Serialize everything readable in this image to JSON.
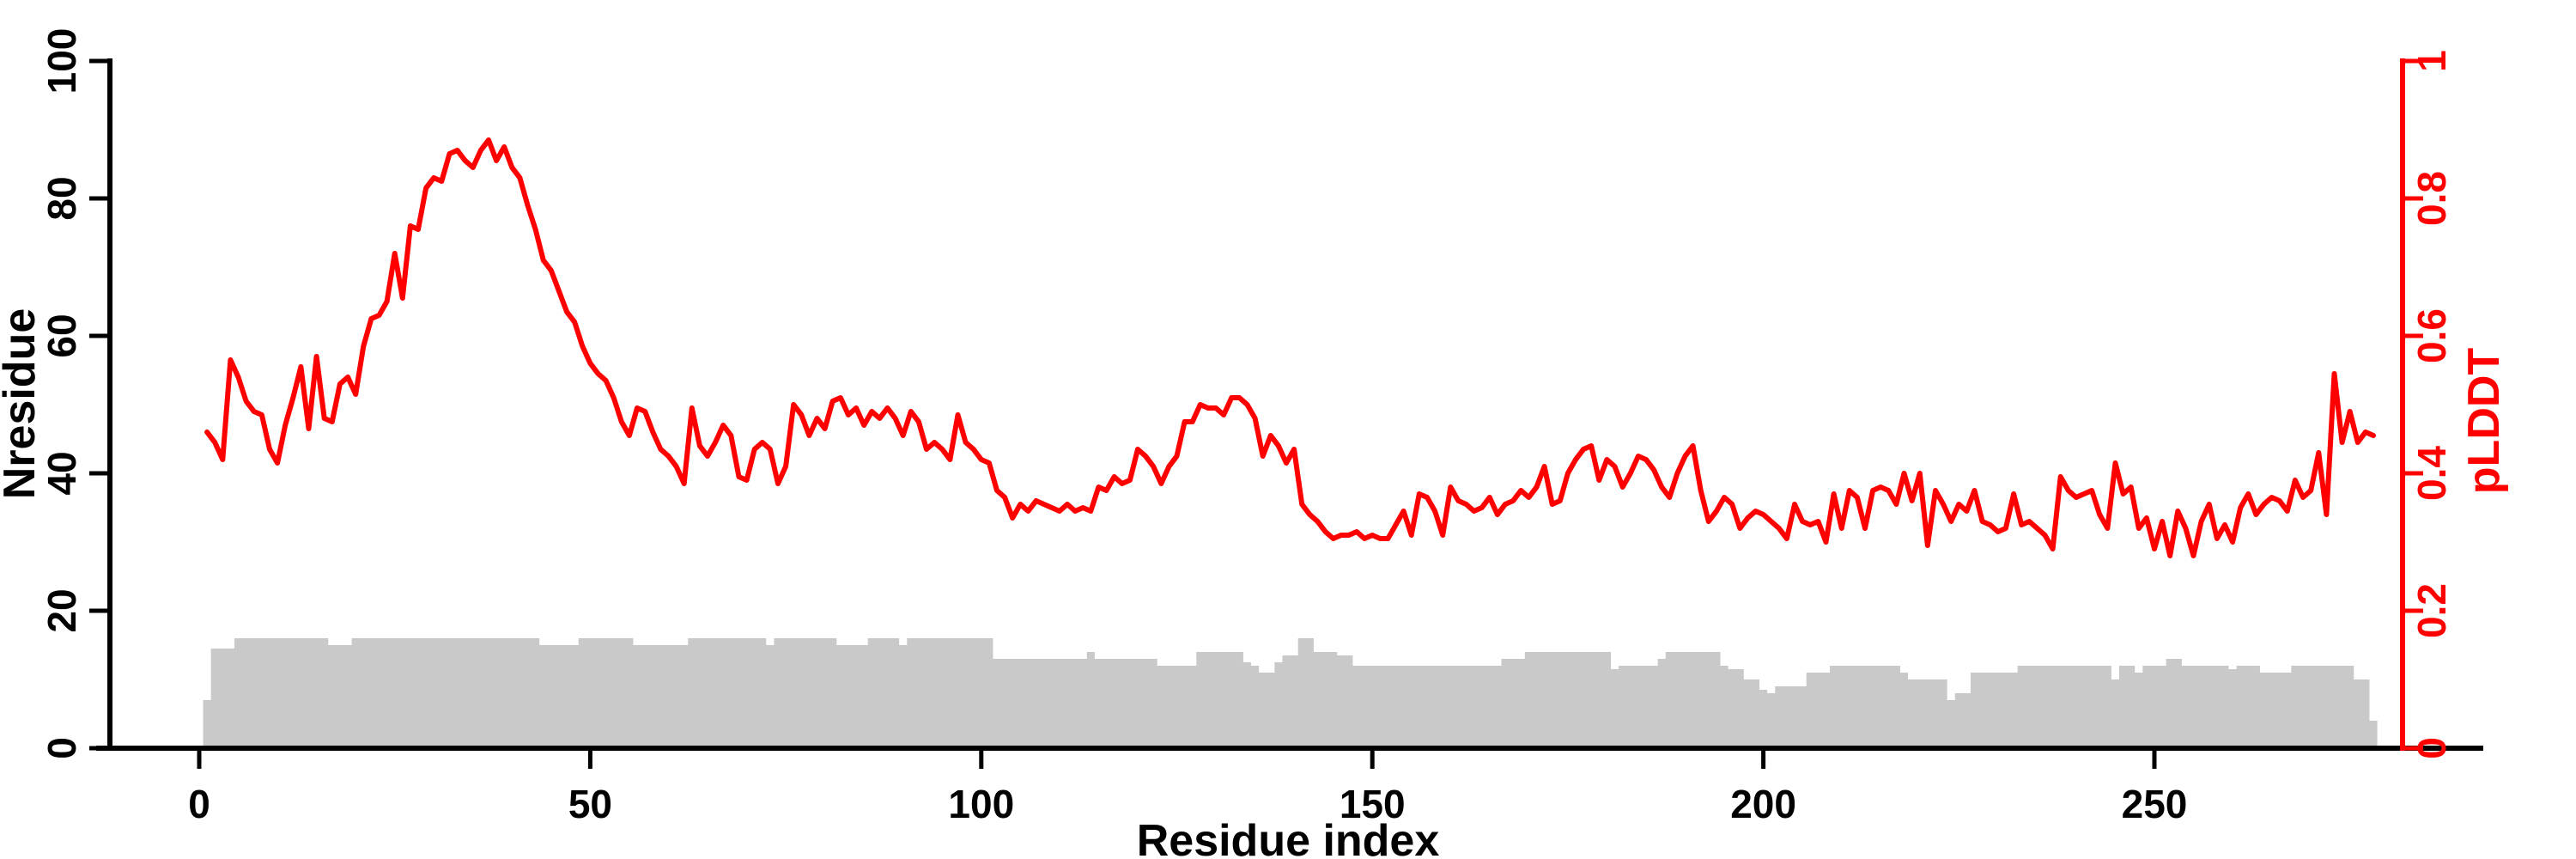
{
  "chart_data": {
    "type": "line",
    "subtype": "dual-axis line over bar silhouette",
    "title": "",
    "xlabel": "Residue index",
    "ylabel_left": "Nresidue",
    "ylabel_right": "pLDDT",
    "x_ticks": [
      0,
      50,
      100,
      150,
      200,
      250
    ],
    "y_left_ticks": [
      0,
      20,
      40,
      60,
      80,
      100
    ],
    "y_right_tick_labels": [
      "0",
      "0.2",
      "0.4",
      "0.6",
      "0.8",
      "1"
    ],
    "xlim": [
      0,
      282
    ],
    "ylim_left": [
      0,
      100
    ],
    "ylim_right": [
      0,
      1
    ],
    "grid": false,
    "legend": "none",
    "colors": {
      "line": "#ff0000",
      "bars": "#c9c9c9",
      "left_axis": "#000000",
      "right_axis": "#ff0000",
      "background": "#ffffff"
    },
    "x_start_residue": 1,
    "series": [
      {
        "name": "pLDDT",
        "type": "line",
        "axis": "right",
        "values": [
          0.46,
          0.445,
          0.42,
          0.565,
          0.54,
          0.505,
          0.49,
          0.485,
          0.435,
          0.415,
          0.47,
          0.51,
          0.555,
          0.465,
          0.57,
          0.48,
          0.475,
          0.53,
          0.54,
          0.515,
          0.585,
          0.625,
          0.63,
          0.65,
          0.72,
          0.655,
          0.76,
          0.755,
          0.815,
          0.83,
          0.825,
          0.865,
          0.87,
          0.855,
          0.845,
          0.87,
          0.885,
          0.855,
          0.875,
          0.845,
          0.83,
          0.79,
          0.755,
          0.71,
          0.695,
          0.665,
          0.635,
          0.62,
          0.585,
          0.56,
          0.545,
          0.535,
          0.51,
          0.475,
          0.455,
          0.495,
          0.49,
          0.46,
          0.435,
          0.425,
          0.41,
          0.385,
          0.495,
          0.44,
          0.425,
          0.445,
          0.47,
          0.455,
          0.395,
          0.39,
          0.435,
          0.445,
          0.435,
          0.385,
          0.41,
          0.5,
          0.485,
          0.455,
          0.48,
          0.465,
          0.505,
          0.51,
          0.485,
          0.495,
          0.47,
          0.49,
          0.48,
          0.495,
          0.48,
          0.455,
          0.49,
          0.475,
          0.435,
          0.445,
          0.435,
          0.42,
          0.485,
          0.445,
          0.435,
          0.42,
          0.415,
          0.375,
          0.365,
          0.335,
          0.355,
          0.345,
          0.36,
          0.355,
          0.35,
          0.345,
          0.355,
          0.345,
          0.35,
          0.345,
          0.38,
          0.375,
          0.395,
          0.385,
          0.39,
          0.435,
          0.425,
          0.41,
          0.385,
          0.41,
          0.425,
          0.475,
          0.475,
          0.5,
          0.495,
          0.495,
          0.485,
          0.51,
          0.51,
          0.5,
          0.48,
          0.425,
          0.455,
          0.44,
          0.415,
          0.435,
          0.355,
          0.34,
          0.33,
          0.315,
          0.305,
          0.31,
          0.31,
          0.315,
          0.305,
          0.31,
          0.305,
          0.305,
          0.325,
          0.345,
          0.31,
          0.37,
          0.365,
          0.345,
          0.31,
          0.38,
          0.36,
          0.355,
          0.345,
          0.35,
          0.365,
          0.34,
          0.355,
          0.36,
          0.375,
          0.365,
          0.38,
          0.41,
          0.355,
          0.36,
          0.4,
          0.42,
          0.435,
          0.44,
          0.39,
          0.42,
          0.41,
          0.38,
          0.4,
          0.425,
          0.42,
          0.405,
          0.38,
          0.365,
          0.4,
          0.425,
          0.44,
          0.375,
          0.33,
          0.345,
          0.365,
          0.355,
          0.32,
          0.335,
          0.345,
          0.34,
          0.33,
          0.32,
          0.305,
          0.355,
          0.33,
          0.325,
          0.33,
          0.3,
          0.37,
          0.32,
          0.375,
          0.365,
          0.32,
          0.375,
          0.38,
          0.375,
          0.355,
          0.4,
          0.36,
          0.4,
          0.295,
          0.375,
          0.355,
          0.33,
          0.355,
          0.345,
          0.375,
          0.33,
          0.325,
          0.315,
          0.32,
          0.37,
          0.325,
          0.33,
          0.32,
          0.31,
          0.29,
          0.395,
          0.375,
          0.365,
          0.37,
          0.375,
          0.34,
          0.32,
          0.415,
          0.37,
          0.38,
          0.32,
          0.335,
          0.29,
          0.33,
          0.28,
          0.345,
          0.32,
          0.28,
          0.33,
          0.355,
          0.305,
          0.325,
          0.3,
          0.35,
          0.37,
          0.34,
          0.355,
          0.365,
          0.36,
          0.345,
          0.39,
          0.365,
          0.375,
          0.43,
          0.34,
          0.545,
          0.445,
          0.49,
          0.445,
          0.46,
          0.455
        ]
      },
      {
        "name": "Nresidue",
        "type": "bar",
        "axis": "left",
        "values": [
          7,
          14.5,
          14.5,
          14.5,
          16,
          16,
          16,
          16,
          16,
          16,
          16,
          16,
          16,
          16,
          16,
          16,
          15,
          15,
          15,
          16,
          16,
          16,
          16,
          16,
          16,
          16,
          16,
          16,
          16,
          16,
          16,
          16,
          16,
          16,
          16,
          16,
          16,
          16,
          16,
          16,
          16,
          16,
          16,
          15,
          15,
          15,
          15,
          15,
          16,
          16,
          16,
          16,
          16,
          16,
          16,
          15,
          15,
          15,
          15,
          15,
          15,
          15,
          16,
          16,
          16,
          16,
          16,
          16,
          16,
          16,
          16,
          16,
          15,
          16,
          16,
          16,
          16,
          16,
          16,
          16,
          16,
          15,
          15,
          15,
          15,
          16,
          16,
          16,
          16,
          15,
          16,
          16,
          16,
          16,
          16,
          16,
          16,
          16,
          16,
          16,
          16,
          13,
          13,
          13,
          13,
          13,
          13,
          13,
          13,
          13,
          13,
          13,
          13,
          14,
          13,
          13,
          13,
          13,
          13,
          13,
          13,
          13,
          12,
          12,
          12,
          12,
          12,
          14,
          14,
          14,
          14,
          14,
          14,
          12.5,
          12,
          11,
          11,
          12.5,
          13.5,
          13.5,
          16,
          16,
          14,
          14,
          14,
          13.5,
          13.5,
          12,
          12,
          12,
          12,
          12,
          12,
          12,
          12,
          12,
          12,
          12,
          12,
          12,
          12,
          12,
          12,
          12,
          12,
          12,
          13,
          13,
          13,
          14,
          14,
          14,
          14,
          14,
          14,
          14,
          14,
          14,
          14,
          14,
          11.5,
          12,
          12,
          12,
          12,
          12,
          13,
          14,
          14,
          14,
          14,
          14,
          14,
          14,
          12,
          11.5,
          11.5,
          10,
          10,
          8.5,
          8,
          9,
          9,
          9,
          9,
          11,
          11,
          11,
          12,
          12,
          12,
          12,
          12,
          12,
          12,
          12,
          12,
          11,
          10,
          10,
          10,
          10,
          10,
          7,
          8,
          8,
          11,
          11,
          11,
          11,
          11,
          11,
          12,
          12,
          12,
          12,
          12,
          12,
          12,
          12,
          12,
          12,
          12,
          12,
          10,
          12,
          12,
          11,
          12,
          12,
          12,
          13,
          13,
          12,
          12,
          12,
          12,
          12,
          12,
          11.5,
          12,
          12,
          12,
          11,
          11,
          11,
          11,
          12,
          12,
          12,
          12,
          12,
          12,
          12,
          12,
          10,
          10,
          4
        ]
      }
    ]
  }
}
